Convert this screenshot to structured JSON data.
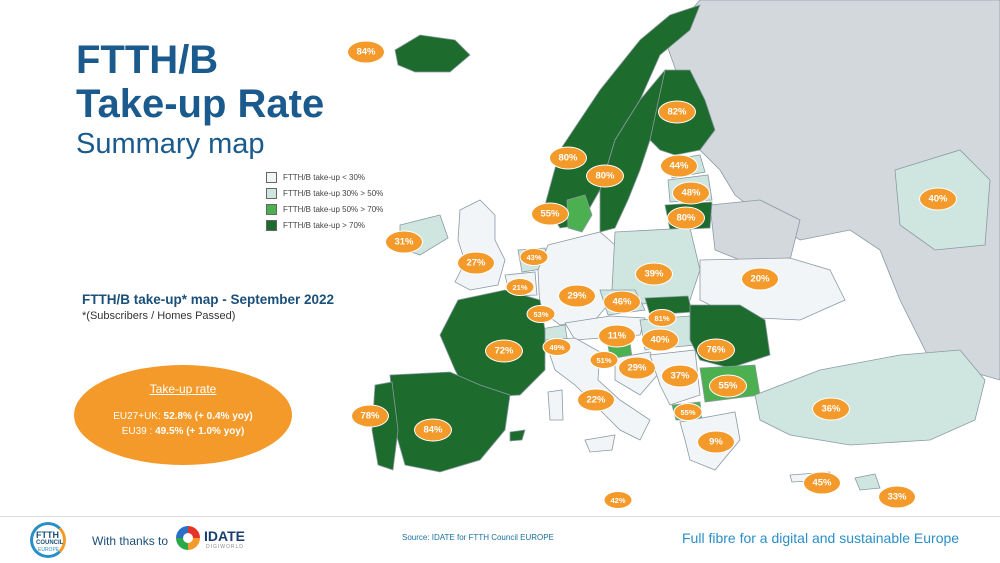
{
  "title": {
    "line1": "FTTH/B",
    "line2": "Take-up Rate",
    "line3": "Summary map"
  },
  "legend": [
    {
      "label": "FTTH/B take-up < 30%",
      "color": "#f1f5f8"
    },
    {
      "label": "FTTH/B take-up 30% > 50%",
      "color": "#cfe6e0"
    },
    {
      "label": "FTTH/B take-up 50% > 70%",
      "color": "#4caf50"
    },
    {
      "label": "FTTH/B take-up > 70%",
      "color": "#1e6b2e"
    }
  ],
  "map_heading": "FTTH/B take-up* map - September 2022",
  "map_subheading": "*(Subscribers / Homes Passed)",
  "summary": {
    "title": "Take-up rate",
    "line1_prefix": "EU27+UK: ",
    "line1_value": "52.8% (+ 0.4% yoy)",
    "line2_prefix": "EU39 : ",
    "line2_value": "49.5% (+ 1.0% yoy)"
  },
  "map_colors": {
    "sea": "#ffffff",
    "outside": "#d3d8dc",
    "low": "#f1f5f8",
    "mid": "#cfe6e0",
    "high": "#4caf50",
    "top": "#1e6b2e",
    "border": "#8a9aa3",
    "badge": "#f39a2b"
  },
  "labels": [
    "84%",
    "82%",
    "80%",
    "80%",
    "44%",
    "48%",
    "80%",
    "55%",
    "40%",
    "31%",
    "27%",
    "43%",
    "21%",
    "29%",
    "39%",
    "20%",
    "46%",
    "53%",
    "81%",
    "72%",
    "11%",
    "49%",
    "40%",
    "76%",
    "51%",
    "29%",
    "37%",
    "55%",
    "78%",
    "84%",
    "22%",
    "55%",
    "36%",
    "9%",
    "45%",
    "42%",
    "33%"
  ],
  "footer": {
    "ftth_logo_1": "FTTH",
    "ftth_logo_2": "COUNCIL",
    "ftth_logo_3": "EUROPE",
    "thanks": "With thanks to",
    "idate": "IDATE",
    "idate_sub": "DIGIWORLD",
    "source": "Source: IDATE for FTTH Council EUROPE",
    "tagline": "Full fibre for a digital and sustainable Europe"
  }
}
